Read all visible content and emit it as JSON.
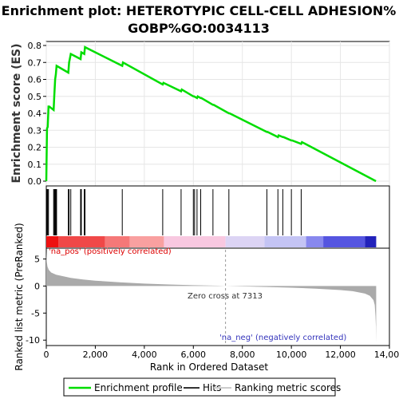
{
  "title_line1": "Enrichment plot: HETEROTYPIC CELL-CELL ADHESION%",
  "title_line2": "GOBP%GO:0034113",
  "colors": {
    "enrichment": "#00dd00",
    "hits": "#000000",
    "metric": "#aaaaaa",
    "pos_text": "#dd0000",
    "neg_text": "#3333bb",
    "zero_line": "#999999"
  },
  "chart_data": {
    "type": "line",
    "es_panel": {
      "ylabel": "Enrichment score (ES)",
      "ylim": [
        0.0,
        0.8
      ],
      "yticks": [
        0.0,
        0.1,
        0.2,
        0.3,
        0.4,
        0.5,
        0.6,
        0.7,
        0.8
      ],
      "grid": true,
      "series": [
        {
          "name": "Enrichment profile",
          "x": [
            0,
            30,
            60,
            90,
            120,
            300,
            330,
            360,
            390,
            420,
            900,
            930,
            1000,
            1400,
            1430,
            1550,
            1580,
            3100,
            3130,
            4750,
            4780,
            5500,
            5530,
            6000,
            6030,
            6150,
            6180,
            6300,
            6330,
            6800,
            6830,
            7450,
            7480,
            9000,
            9030,
            9450,
            9480,
            9650,
            9680,
            10000,
            10030,
            10400,
            10430,
            13450
          ],
          "y": [
            0.0,
            0.31,
            0.32,
            0.44,
            0.44,
            0.42,
            0.51,
            0.6,
            0.63,
            0.68,
            0.64,
            0.7,
            0.75,
            0.72,
            0.76,
            0.75,
            0.79,
            0.68,
            0.7,
            0.57,
            0.58,
            0.53,
            0.54,
            0.5,
            0.5,
            0.49,
            0.5,
            0.49,
            0.49,
            0.45,
            0.45,
            0.4,
            0.4,
            0.29,
            0.29,
            0.26,
            0.27,
            0.26,
            0.26,
            0.24,
            0.24,
            0.22,
            0.23,
            0.0
          ]
        }
      ]
    },
    "hits": [
      30,
      60,
      90,
      300,
      330,
      360,
      390,
      420,
      900,
      930,
      1000,
      1400,
      1430,
      1550,
      1580,
      3100,
      4750,
      5500,
      6000,
      6050,
      6150,
      6300,
      6800,
      7450,
      9000,
      9450,
      9650,
      10000,
      10400
    ],
    "metric_panel": {
      "ylabel": "Ranked list metric (PreRanked)",
      "ylim": [
        -11,
        7
      ],
      "yticks": [
        5,
        0,
        -5,
        -10
      ],
      "x": [
        0,
        20,
        50,
        100,
        200,
        400,
        700,
        1000,
        1500,
        2000,
        3000,
        4000,
        5000,
        6000,
        7000,
        7313,
        8000,
        9000,
        10000,
        11000,
        12000,
        12500,
        13000,
        13200,
        13350,
        13400,
        13430,
        13450,
        13460
      ],
      "y": [
        6.5,
        4.5,
        3.6,
        3.0,
        2.5,
        2.1,
        1.8,
        1.5,
        1.2,
        1.0,
        0.7,
        0.45,
        0.28,
        0.16,
        0.06,
        0.0,
        -0.07,
        -0.17,
        -0.3,
        -0.48,
        -0.75,
        -0.95,
        -1.4,
        -1.8,
        -2.6,
        -3.5,
        -5.5,
        -7.5,
        -10.5
      ],
      "zero_cross_label": "Zero cross at 7313",
      "zero_cross": 7313,
      "pos_label": "'na_pos' (positively correlated)",
      "neg_label": "'na_neg' (negatively correlated)"
    },
    "xlabel": "Rank in Ordered Dataset",
    "xlim": [
      0,
      14000
    ],
    "xticks": [
      0,
      2000,
      4000,
      6000,
      8000,
      10000,
      12000,
      14000
    ],
    "xtick_labels": [
      "0",
      "2,000",
      "4,000",
      "6,000",
      "8,000",
      "10,000",
      "12,000",
      "14,000"
    ],
    "heatbar": [
      {
        "start": 0,
        "end": 500,
        "color": "#ee1111"
      },
      {
        "start": 500,
        "end": 2400,
        "color": "#f04848"
      },
      {
        "start": 2400,
        "end": 3400,
        "color": "#f57878"
      },
      {
        "start": 3400,
        "end": 4800,
        "color": "#f9a0a0"
      },
      {
        "start": 4800,
        "end": 7313,
        "color": "#f8c8e0"
      },
      {
        "start": 7313,
        "end": 8900,
        "color": "#dcd4f4"
      },
      {
        "start": 8900,
        "end": 10600,
        "color": "#c4c4f4"
      },
      {
        "start": 10600,
        "end": 11300,
        "color": "#8888ee"
      },
      {
        "start": 11300,
        "end": 13000,
        "color": "#5555e0"
      },
      {
        "start": 13000,
        "end": 13460,
        "color": "#2222bb"
      }
    ],
    "legend": {
      "placement": "bottom",
      "items": [
        {
          "label": "Enrichment profile",
          "kind": "line",
          "color": "#00dd00"
        },
        {
          "label": "Hits",
          "kind": "line",
          "color": "#333333"
        },
        {
          "label": "Ranking metric scores",
          "kind": "line",
          "color": "#cccccc"
        }
      ]
    }
  }
}
